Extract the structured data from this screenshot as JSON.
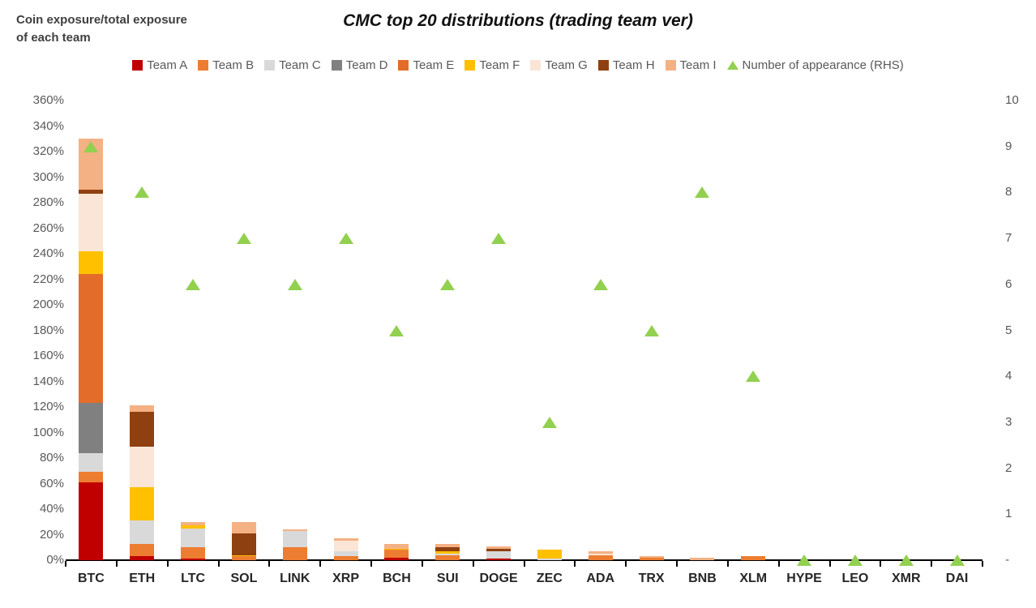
{
  "header": {
    "axis_note_line1": "Coin exposure/total exposure",
    "axis_note_line2": "of each team"
  },
  "title": "CMC top 20 distributions (trading team ver)",
  "legend": {
    "items": [
      {
        "label": "Team A",
        "color": "#C00000",
        "shape": "square"
      },
      {
        "label": "Team B",
        "color": "#ED7D31",
        "shape": "square"
      },
      {
        "label": "Team C",
        "color": "#D9D9D9",
        "shape": "square"
      },
      {
        "label": "Team D",
        "color": "#808080",
        "shape": "square"
      },
      {
        "label": "Team E",
        "color": "#E36C2A",
        "shape": "square"
      },
      {
        "label": "Team F",
        "color": "#FFC000",
        "shape": "square"
      },
      {
        "label": "Team G",
        "color": "#FBE5D6",
        "shape": "square"
      },
      {
        "label": "Team H",
        "color": "#8F4010",
        "shape": "square"
      },
      {
        "label": "Team I",
        "color": "#F4B183",
        "shape": "square"
      },
      {
        "label": "Number of appearance (RHS)",
        "color": "#92D050",
        "shape": "triangle"
      }
    ]
  },
  "chart_data": {
    "type": "bar",
    "stacked": true,
    "title": "CMC top 20 distributions (trading team ver)",
    "categories": [
      "BTC",
      "ETH",
      "LTC",
      "SOL",
      "LINK",
      "XRP",
      "BCH",
      "SUI",
      "DOGE",
      "ZEC",
      "ADA",
      "TRX",
      "BNB",
      "XLM",
      "HYPE",
      "LEO",
      "XMR",
      "DAI"
    ],
    "series": [
      {
        "name": "Team A",
        "color": "#C00000",
        "values": [
          61,
          3,
          1,
          0,
          0,
          0,
          2,
          0,
          1,
          0,
          0,
          0,
          0,
          0,
          0,
          0,
          0,
          0
        ]
      },
      {
        "name": "Team B",
        "color": "#ED7D31",
        "values": [
          8,
          10,
          9,
          3,
          10,
          3,
          6,
          4,
          0,
          0,
          4,
          2,
          0,
          3,
          0,
          0,
          0,
          0
        ]
      },
      {
        "name": "Team C",
        "color": "#D9D9D9",
        "values": [
          15,
          18,
          15,
          0,
          13,
          4,
          0,
          1,
          6,
          1,
          0,
          0,
          0,
          0,
          0,
          0,
          0,
          0
        ]
      },
      {
        "name": "Team D",
        "color": "#808080",
        "values": [
          39,
          0,
          0,
          0,
          0,
          0,
          0,
          0,
          0,
          0,
          0,
          0,
          0,
          0,
          0,
          0,
          0,
          0
        ]
      },
      {
        "name": "Team E",
        "color": "#E36C2A",
        "values": [
          101,
          0,
          0,
          0,
          0,
          0,
          0,
          0,
          0,
          0,
          0,
          0,
          0,
          0,
          0,
          0,
          0,
          0
        ]
      },
      {
        "name": "Team F",
        "color": "#FFC000",
        "values": [
          18,
          26,
          2,
          1,
          0,
          0,
          1,
          2,
          0,
          7,
          0,
          0,
          0,
          0,
          0,
          0,
          0,
          0
        ]
      },
      {
        "name": "Team G",
        "color": "#FBE5D6",
        "values": [
          45,
          32,
          0,
          0,
          0,
          8,
          0,
          0,
          0,
          0,
          1,
          0,
          0,
          0,
          0,
          0,
          0,
          0
        ]
      },
      {
        "name": "Team H",
        "color": "#8F4010",
        "values": [
          3,
          27,
          0,
          17,
          0,
          0,
          0,
          3,
          2,
          0,
          0,
          0,
          0,
          0,
          0,
          0,
          0,
          0
        ]
      },
      {
        "name": "Team I",
        "color": "#F4B183",
        "values": [
          40,
          5,
          3,
          9,
          1,
          2,
          4,
          3,
          2,
          0,
          2,
          1,
          2,
          0,
          0,
          0,
          0,
          0
        ]
      }
    ],
    "marker_series": {
      "name": "Number of appearance (RHS)",
      "color": "#92D050",
      "values": [
        9,
        8,
        6,
        7,
        6,
        7,
        5,
        6,
        7,
        3,
        6,
        5,
        8,
        4,
        0,
        0,
        0,
        0
      ]
    },
    "left_axis": {
      "title": "Coin exposure/total exposure of each team",
      "min": 0,
      "max": 360,
      "step": 20,
      "tick_labels": [
        "0%",
        "20%",
        "40%",
        "60%",
        "80%",
        "100%",
        "120%",
        "140%",
        "160%",
        "180%",
        "200%",
        "220%",
        "240%",
        "260%",
        "280%",
        "300%",
        "320%",
        "340%",
        "360%"
      ]
    },
    "right_axis": {
      "title": "Number of appearance",
      "min": 0,
      "max": 10,
      "step": 1,
      "tick_labels": [
        "-",
        "1",
        "2",
        "3",
        "4",
        "5",
        "6",
        "7",
        "8",
        "9",
        "10"
      ]
    },
    "grid": false,
    "legend_position": "top"
  }
}
